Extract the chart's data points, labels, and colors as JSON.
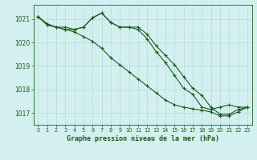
{
  "title": "Graphe pression niveau de la mer (hPa)",
  "background_color": "#d4efef",
  "grid_color": "#b8dcdc",
  "line_color": "#1a5c1a",
  "xlim": [
    -0.5,
    23.5
  ],
  "ylim": [
    1016.5,
    1021.6
  ],
  "yticks": [
    1017,
    1018,
    1019,
    1020,
    1021
  ],
  "xticks": [
    0,
    1,
    2,
    3,
    4,
    5,
    6,
    7,
    8,
    9,
    10,
    11,
    12,
    13,
    14,
    15,
    16,
    17,
    18,
    19,
    20,
    21,
    22,
    23
  ],
  "line1_x": [
    0,
    1,
    2,
    3,
    4,
    5,
    6,
    7,
    8,
    9,
    10,
    11,
    12,
    13,
    14,
    15,
    16,
    17,
    18,
    19,
    20,
    21,
    22,
    23
  ],
  "line1_y": [
    1021.1,
    1020.8,
    1020.65,
    1020.65,
    1020.55,
    1020.65,
    1021.05,
    1021.25,
    1020.85,
    1020.65,
    1020.65,
    1020.65,
    1020.35,
    1019.85,
    1019.45,
    1019.05,
    1018.55,
    1018.05,
    1017.75,
    1017.25,
    1016.95,
    1016.95,
    1017.15,
    1017.25
  ],
  "line2_x": [
    0,
    1,
    2,
    3,
    4,
    5,
    6,
    7,
    8,
    9,
    10,
    11,
    12,
    13,
    14,
    15,
    16,
    17,
    18,
    19,
    20,
    21,
    22,
    23
  ],
  "line2_y": [
    1021.1,
    1020.75,
    1020.65,
    1020.55,
    1020.45,
    1020.25,
    1020.05,
    1019.75,
    1019.35,
    1019.05,
    1018.75,
    1018.45,
    1018.15,
    1017.85,
    1017.55,
    1017.35,
    1017.25,
    1017.18,
    1017.12,
    1017.05,
    1016.88,
    1016.88,
    1017.05,
    1017.25
  ],
  "line3_x": [
    0,
    1,
    2,
    3,
    4,
    5,
    6,
    7,
    8,
    9,
    10,
    11,
    12,
    13,
    14,
    15,
    16,
    17,
    18,
    19,
    20,
    21,
    22,
    23
  ],
  "line3_y": [
    1021.1,
    1020.75,
    1020.65,
    1020.55,
    1020.55,
    1020.65,
    1021.05,
    1021.25,
    1020.85,
    1020.65,
    1020.65,
    1020.55,
    1020.15,
    1019.6,
    1019.15,
    1018.6,
    1018.05,
    1017.8,
    1017.25,
    1017.15,
    1017.25,
    1017.35,
    1017.25,
    1017.25
  ]
}
